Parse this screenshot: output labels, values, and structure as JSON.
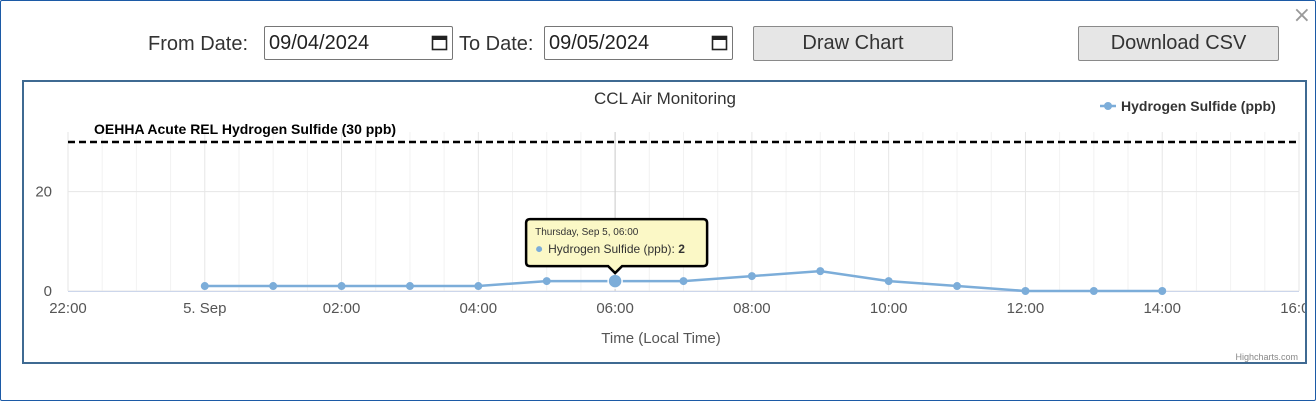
{
  "controls": {
    "from_label": "From Date:",
    "from_value": "09/04/2024",
    "to_label": "To Date:",
    "to_value": "09/05/2024",
    "draw_button": "Draw Chart",
    "download_button": "Download CSV",
    "close_glyph": "×"
  },
  "chart_data": {
    "type": "line",
    "title": "CCL Air Monitoring",
    "xlabel": "Time (Local Time)",
    "ylabel": "",
    "x_ticks": [
      {
        "label": "22:00",
        "hour": -2
      },
      {
        "label": "5. Sep",
        "hour": 0
      },
      {
        "label": "02:00",
        "hour": 2
      },
      {
        "label": "04:00",
        "hour": 4
      },
      {
        "label": "06:00",
        "hour": 6
      },
      {
        "label": "08:00",
        "hour": 8
      },
      {
        "label": "10:00",
        "hour": 10
      },
      {
        "label": "12:00",
        "hour": 12
      },
      {
        "label": "14:00",
        "hour": 14
      },
      {
        "label": "16:00",
        "hour": 16
      }
    ],
    "xlim": [
      "2024-09-04 22:00",
      "2024-09-05 16:00"
    ],
    "y_ticks": [
      0,
      20
    ],
    "ylim": [
      0,
      32
    ],
    "grid": true,
    "legend_position": "top-right",
    "series": [
      {
        "name": "Hydrogen Sulfide (ppb)",
        "color": "#7cadd9",
        "x": [
          "2024-09-05 00:00",
          "2024-09-05 01:00",
          "2024-09-05 02:00",
          "2024-09-05 03:00",
          "2024-09-05 04:00",
          "2024-09-05 05:00",
          "2024-09-05 06:00",
          "2024-09-05 07:00",
          "2024-09-05 08:00",
          "2024-09-05 09:00",
          "2024-09-05 10:00",
          "2024-09-05 11:00",
          "2024-09-05 12:00",
          "2024-09-05 13:00",
          "2024-09-05 14:00"
        ],
        "y": [
          1,
          1,
          1,
          1,
          1,
          2,
          2,
          2,
          3,
          4,
          2,
          1,
          0,
          0,
          0
        ]
      }
    ],
    "reference_line": {
      "label": "OEHHA Acute REL Hydrogen Sulfide (30 ppb)",
      "value": 30,
      "color": "#000000"
    },
    "tooltip": {
      "header": "Thursday, Sep 5, 06:00",
      "series_label": "Hydrogen Sulfide (ppb):",
      "value": "2",
      "x": "2024-09-05 06:00",
      "y": 2
    },
    "credits": "Highcharts.com"
  }
}
